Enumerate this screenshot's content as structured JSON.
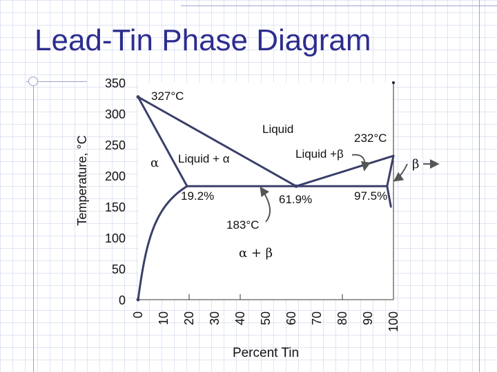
{
  "slide": {
    "title": "Lead-Tin Phase Diagram",
    "accent_color": "#2d2d8f"
  },
  "chart_data": {
    "type": "line",
    "title": "Lead-Tin Phase Diagram",
    "xlabel": "Percent Tin",
    "ylabel": "Temperature, °C",
    "xlim": [
      0,
      100
    ],
    "ylim": [
      0,
      350
    ],
    "x_ticks": [
      "0",
      "10",
      "20",
      "30",
      "40",
      "50",
      "60",
      "70",
      "80",
      "90",
      "100"
    ],
    "y_ticks": [
      "0",
      "50",
      "100",
      "150",
      "200",
      "250",
      "300",
      "350"
    ],
    "series": [
      {
        "name": "liquidus-lead-side",
        "x": [
          0,
          61.9
        ],
        "y": [
          327,
          183
        ]
      },
      {
        "name": "liquidus-tin-side",
        "x": [
          61.9,
          100
        ],
        "y": [
          183,
          232
        ]
      },
      {
        "name": "solidus-alpha",
        "x": [
          0,
          19.2
        ],
        "y": [
          327,
          183
        ]
      },
      {
        "name": "solvus-alpha",
        "x": [
          0,
          3,
          7,
          11,
          14,
          17,
          19.2
        ],
        "y": [
          0,
          50,
          100,
          135,
          158,
          175,
          183
        ]
      },
      {
        "name": "eutectic-isotherm",
        "x": [
          19.2,
          97.5
        ],
        "y": [
          183,
          183
        ]
      },
      {
        "name": "solidus-beta",
        "x": [
          97.5,
          100
        ],
        "y": [
          183,
          232
        ]
      },
      {
        "name": "solvus-beta",
        "x": [
          97.5,
          99
        ],
        "y": [
          183,
          150
        ]
      }
    ],
    "annotations": {
      "pb_melting": "327°C",
      "sn_melting": "232°C",
      "eutectic_temp": "183°C",
      "alpha_limit": "19.2%",
      "eutectic_comp": "61.9%",
      "beta_limit": "97.5%",
      "liquid": "Liquid",
      "liquid_alpha": "Liquid + α",
      "liquid_beta": "Liquid +β",
      "alpha": "α",
      "beta": "β",
      "alpha_beta": "α + β"
    }
  }
}
